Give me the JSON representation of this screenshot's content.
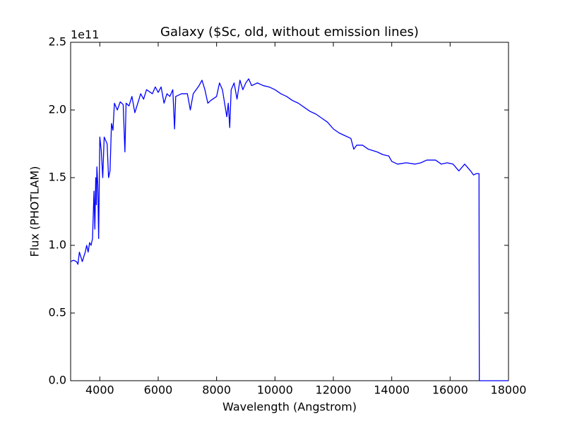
{
  "chart_data": {
    "type": "line",
    "title": "Galaxy ($Sc, old, without emission lines)",
    "x_label": "Wavelength (Angstrom)",
    "y_label": "Flux (PHOTLAM)",
    "y_offset_label": "1e11",
    "xlim": [
      3000,
      18000
    ],
    "xticks": [
      4000,
      6000,
      8000,
      10000,
      12000,
      14000,
      16000,
      18000
    ],
    "ylim": [
      0,
      2.5
    ],
    "yticks": [
      {
        "value": 0,
        "label": "0.0"
      },
      0.5,
      {
        "value": 1,
        "label": "1.0"
      },
      1.5,
      {
        "value": 2,
        "label": "2.0"
      },
      2.5
    ],
    "grid": false,
    "x": [
      3000,
      3100,
      3200,
      3250,
      3300,
      3400,
      3500,
      3550,
      3600,
      3650,
      3700,
      3750,
      3800,
      3830,
      3860,
      3880,
      3900,
      3930,
      3960,
      4000,
      4050,
      4100,
      4150,
      4250,
      4300,
      4350,
      4400,
      4450,
      4500,
      4600,
      4700,
      4800,
      4860,
      4900,
      5000,
      5100,
      5200,
      5300,
      5400,
      5500,
      5600,
      5800,
      5900,
      6000,
      6100,
      6200,
      6300,
      6400,
      6500,
      6560,
      6600,
      6800,
      7000,
      7100,
      7200,
      7300,
      7400,
      7500,
      7600,
      7700,
      7800,
      8000,
      8100,
      8200,
      8350,
      8400,
      8450,
      8500,
      8600,
      8700,
      8800,
      8900,
      9000,
      9100,
      9200,
      9400,
      9600,
      9800,
      10000,
      10200,
      10400,
      10600,
      10800,
      11000,
      11200,
      11400,
      11600,
      11800,
      12000,
      12200,
      12400,
      12600,
      12700,
      12800,
      13000,
      13200,
      13500,
      13700,
      13900,
      14000,
      14200,
      14500,
      14800,
      15000,
      15200,
      15500,
      15700,
      15900,
      16100,
      16300,
      16500,
      16700,
      16800,
      16900,
      16990,
      17000,
      18000
    ],
    "series": [
      {
        "name": "flux",
        "color": "#0000ff",
        "values": [
          0.88,
          0.89,
          0.88,
          0.86,
          0.95,
          0.88,
          0.95,
          1.0,
          0.95,
          1.02,
          1.0,
          1.05,
          1.4,
          1.12,
          1.5,
          1.3,
          1.58,
          1.45,
          1.05,
          1.8,
          1.7,
          1.5,
          1.8,
          1.75,
          1.5,
          1.55,
          1.9,
          1.85,
          2.05,
          2.0,
          2.06,
          2.04,
          1.69,
          2.05,
          2.03,
          2.1,
          1.98,
          2.05,
          2.12,
          2.08,
          2.15,
          2.12,
          2.17,
          2.13,
          2.17,
          2.05,
          2.12,
          2.1,
          2.15,
          1.86,
          2.1,
          2.12,
          2.12,
          2.0,
          2.12,
          2.15,
          2.18,
          2.22,
          2.15,
          2.05,
          2.07,
          2.1,
          2.2,
          2.15,
          1.95,
          2.05,
          1.87,
          2.15,
          2.2,
          2.08,
          2.22,
          2.15,
          2.2,
          2.23,
          2.18,
          2.2,
          2.18,
          2.17,
          2.15,
          2.12,
          2.1,
          2.07,
          2.05,
          2.02,
          1.99,
          1.97,
          1.94,
          1.91,
          1.86,
          1.83,
          1.81,
          1.79,
          1.71,
          1.74,
          1.74,
          1.71,
          1.69,
          1.67,
          1.66,
          1.62,
          1.6,
          1.61,
          1.6,
          1.61,
          1.63,
          1.63,
          1.6,
          1.61,
          1.6,
          1.55,
          1.6,
          1.55,
          1.52,
          1.53,
          1.53,
          0,
          0
        ]
      }
    ]
  }
}
